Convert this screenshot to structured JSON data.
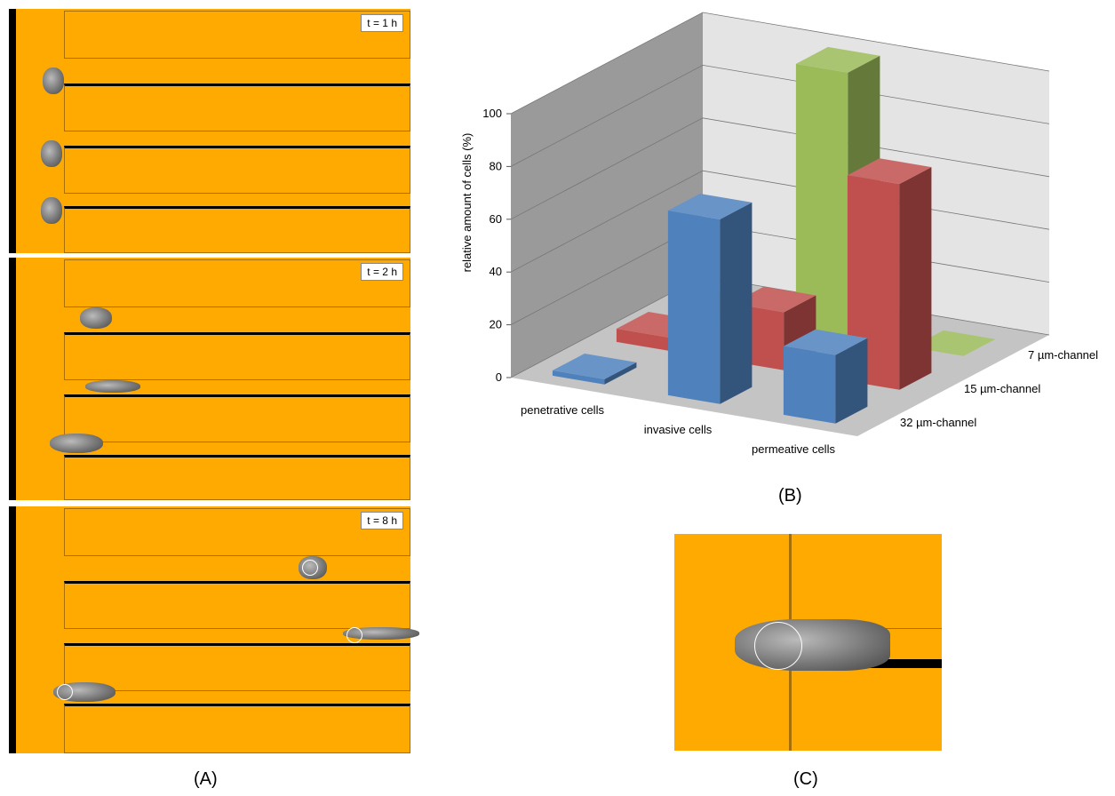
{
  "panel_labels": [
    "(A)",
    "(B)",
    "(C)"
  ],
  "time_labels": [
    "t = 1 h",
    "t = 2 h",
    "t = 8 h"
  ],
  "chart_data": {
    "type": "bar3d",
    "y_label": "relative amount of cells (%)",
    "categories": [
      "penetrative cells",
      "invasive cells",
      "permeative cells"
    ],
    "series": [
      {
        "name": "32 µm-channel",
        "color": "#4f81bd",
        "values": [
          2,
          70,
          26
        ]
      },
      {
        "name": "15 µm-channel",
        "color": "#c0504d",
        "values": [
          5,
          22,
          78
        ]
      },
      {
        "name": "7 µm-channel",
        "color": "#9bbb59",
        "values": [
          0,
          100,
          0
        ]
      }
    ],
    "ylim": [
      0,
      100
    ],
    "yticks": [
      0,
      20,
      40,
      60,
      80,
      100
    ],
    "grid": true
  }
}
